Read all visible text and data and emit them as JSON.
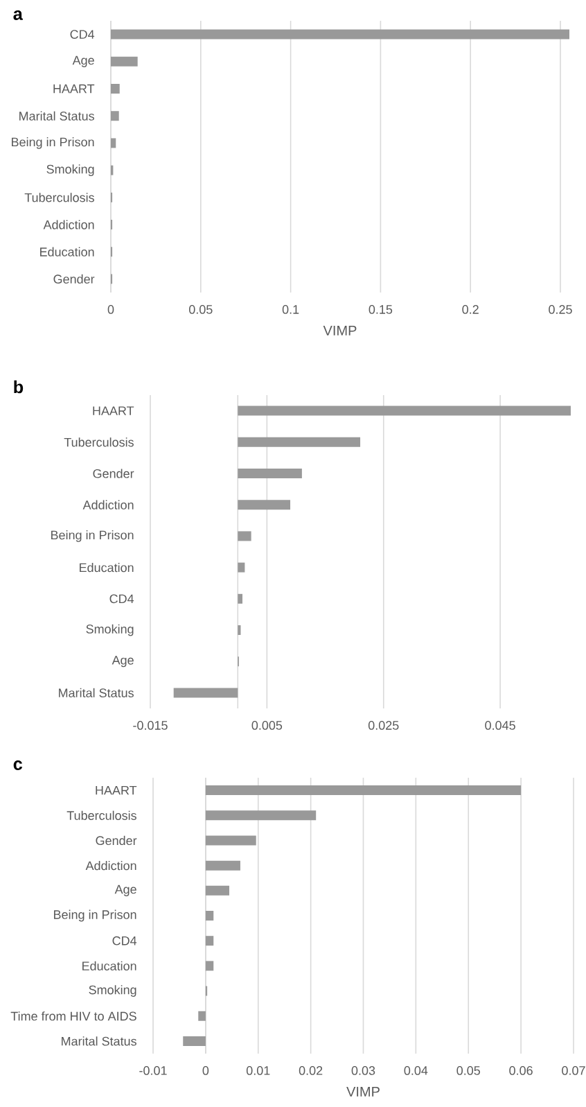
{
  "chart_data": [
    {
      "type": "bar",
      "orientation": "horizontal",
      "title": "a",
      "xlabel": "VIMP",
      "categories": [
        "CD4",
        "Age",
        "HAART",
        "Marital Status",
        "Being in Prison",
        "Smoking",
        "Tuberculosis",
        "Addiction",
        "Education",
        "Gender"
      ],
      "values": [
        0.255,
        0.0149,
        0.0049,
        0.0045,
        0.0028,
        0.0013,
        0.0008,
        0.0008,
        0.0008,
        0.0008
      ],
      "color": "#999999",
      "xlim": [
        0,
        0.255
      ],
      "xticks": [
        0,
        0.05,
        0.1,
        0.15,
        0.2,
        0.25
      ],
      "grid": "x"
    },
    {
      "type": "bar",
      "orientation": "horizontal",
      "title": "b",
      "categories": [
        "HAART",
        "Tuberculosis",
        "Gender",
        "Addiction",
        "Being in Prison",
        "Education",
        "CD4",
        "Smoking",
        "Age",
        "Marital Status"
      ],
      "values": [
        0.0571,
        0.021,
        0.011,
        0.009,
        0.0023,
        0.0012,
        0.0008,
        0.0005,
        0.0002,
        -0.011
      ],
      "color": "#999999",
      "xlim": [
        -0.015,
        0.0571
      ],
      "xticks": [
        -0.015,
        0.005,
        0.025,
        0.045
      ],
      "grid": "x"
    },
    {
      "type": "bar",
      "orientation": "horizontal",
      "title": "c",
      "xlabel": "VIMP",
      "categories": [
        "HAART",
        "Tuberculosis",
        "Gender",
        "Addiction",
        "Age",
        "Being in Prison",
        "CD4",
        "Education",
        "Smoking",
        "Time from HIV to AIDS",
        "Marital Status"
      ],
      "values": [
        0.06,
        0.021,
        0.0096,
        0.0066,
        0.0045,
        0.0015,
        0.0015,
        0.0015,
        0.0003,
        -0.0014,
        -0.0043
      ],
      "color": "#999999",
      "xlim": [
        -0.01,
        0.07
      ],
      "xticks": [
        -0.01,
        0,
        0.01,
        0.02,
        0.03,
        0.04,
        0.05,
        0.06,
        0.07
      ],
      "grid": "x"
    }
  ]
}
